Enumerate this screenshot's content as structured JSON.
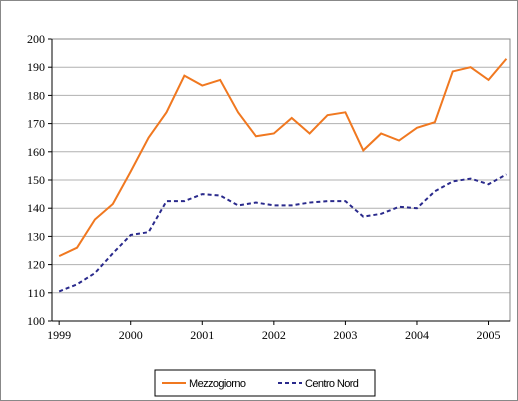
{
  "chart_data": {
    "type": "line",
    "x": [
      1999,
      1999.25,
      1999.5,
      1999.75,
      2000,
      2000.25,
      2000.5,
      2000.75,
      2001,
      2001.25,
      2001.5,
      2001.75,
      2002,
      2002.25,
      2002.5,
      2002.75,
      2003,
      2003.25,
      2003.5,
      2003.75,
      2004,
      2004.25,
      2004.5,
      2004.75,
      2005,
      2005.25
    ],
    "series": [
      {
        "name": "Mezzogiorno",
        "color": "#f07820",
        "values": [
          123,
          126,
          136,
          141.5,
          153,
          165,
          174,
          187,
          183.5,
          185.5,
          174,
          165.5,
          166.5,
          172,
          166.5,
          173,
          174,
          160.5,
          166.5,
          164,
          168.5,
          170.5,
          188.5,
          190,
          185.5,
          193
        ]
      },
      {
        "name": "Centro Nord",
        "color": "#2a2a8c",
        "values": [
          110.5,
          113,
          117,
          124,
          130.5,
          131.5,
          142.5,
          142.5,
          145,
          144.5,
          141,
          142,
          141,
          141,
          142,
          142.5,
          142.5,
          137,
          138,
          140.5,
          140,
          146,
          149.5,
          150.5,
          148.5,
          152
        ]
      }
    ],
    "xlim": [
      1998.9,
      2005.3
    ],
    "xticks": [
      1999,
      2000,
      2001,
      2002,
      2003,
      2004,
      2005
    ],
    "ylim": [
      100,
      200
    ],
    "yticks": [
      100,
      110,
      120,
      130,
      140,
      150,
      160,
      170,
      180,
      190,
      200
    ],
    "grid": true,
    "legend": "bottom"
  }
}
